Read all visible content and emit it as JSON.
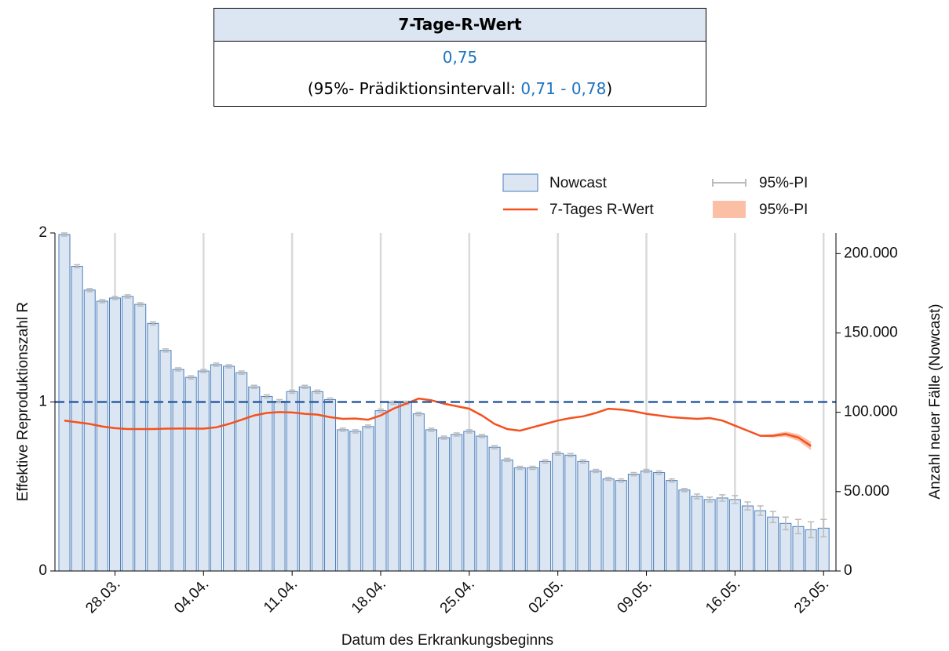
{
  "summary": {
    "title": "7-Tage-R-Wert",
    "value": "0,75",
    "interval_prefix": "(95%- Prädiktionsintervall:",
    "interval_low": "0,71",
    "interval_sep": "-",
    "interval_high": "0,78",
    "interval_suffix": ")"
  },
  "chart_data": {
    "type": "bar",
    "ylabel": "Effektive Reproduktionszahl R",
    "y2label": "Anzahl neuer Fälle (Nowcast)",
    "xlabel": "Datum des Erkrankungsbeginns",
    "categories": [
      null,
      null,
      null,
      null,
      "28.03.",
      null,
      null,
      null,
      null,
      null,
      null,
      "04.04.",
      null,
      null,
      null,
      null,
      null,
      null,
      "11.04.",
      null,
      null,
      null,
      null,
      null,
      null,
      "18.04.",
      null,
      null,
      null,
      null,
      null,
      null,
      "25.04.",
      null,
      null,
      null,
      null,
      null,
      null,
      "02.05.",
      null,
      null,
      null,
      null,
      null,
      null,
      "09.05.",
      null,
      null,
      null,
      null,
      null,
      null,
      "16.05.",
      null,
      null,
      null,
      null,
      null,
      null,
      "23.05."
    ],
    "ylim": [
      0,
      2
    ],
    "yticks": [
      0,
      1,
      2
    ],
    "y2lim": [
      0,
      213000
    ],
    "y2ticks": [
      0,
      {
        "value": 50000,
        "label": "50.000"
      },
      {
        "value": 100000,
        "label": "100.000"
      },
      {
        "value": 150000,
        "label": "150.000"
      },
      {
        "value": 200000,
        "label": "200.000"
      }
    ],
    "grid": true,
    "reference_line": 1,
    "reference_color": "#2e5fa3",
    "series": [
      {
        "name": "Nowcast",
        "type": "bar",
        "axis": "y2",
        "color": "#dce6f2",
        "edge_color": "#4a7ebb",
        "error_name": "95%-PI",
        "error_color": "#bbbbbb",
        "values": [
          212000,
          192000,
          177000,
          170000,
          172000,
          173000,
          168000,
          156000,
          139000,
          127000,
          122000,
          126000,
          130000,
          129000,
          125000,
          116000,
          110000,
          107000,
          113000,
          116000,
          113000,
          108000,
          89000,
          88000,
          91000,
          101000,
          106000,
          106000,
          99000,
          89000,
          84000,
          86000,
          88000,
          85000,
          78000,
          70000,
          65000,
          65000,
          69000,
          74000,
          73000,
          69000,
          63000,
          58000,
          57000,
          61000,
          63000,
          62000,
          57000,
          51000,
          47000,
          45000,
          46000,
          45000,
          41000,
          38000,
          34000,
          30000,
          28000,
          26000,
          27000
        ],
        "errors": [
          1000,
          1000,
          1000,
          1000,
          1000,
          1000,
          1000,
          1000,
          1000,
          1000,
          1000,
          1000,
          1000,
          1000,
          1000,
          1000,
          1000,
          1000,
          1000,
          1000,
          1000,
          1000,
          1000,
          1000,
          1000,
          1000,
          1000,
          1000,
          1000,
          1000,
          1000,
          1000,
          1000,
          1000,
          1000,
          1000,
          1000,
          1000,
          1000,
          1000,
          1000,
          1000,
          1000,
          1000,
          1000,
          1000,
          1000,
          1000,
          1000,
          1000,
          1500,
          1500,
          2000,
          2500,
          2500,
          3000,
          3500,
          4000,
          4500,
          5000,
          5500
        ]
      },
      {
        "name": "7-Tages R-Wert",
        "type": "line",
        "axis": "y",
        "color": "#f4511e",
        "band_name": "95%-PI",
        "band_color": "#fbbfa6",
        "values": [
          0.89,
          0.88,
          0.87,
          0.855,
          0.845,
          0.84,
          0.84,
          0.84,
          0.842,
          0.843,
          0.843,
          0.842,
          0.85,
          0.87,
          0.895,
          0.92,
          0.935,
          0.94,
          0.938,
          0.93,
          0.925,
          0.91,
          0.9,
          0.902,
          0.895,
          0.92,
          0.96,
          0.99,
          1.02,
          1.01,
          0.99,
          0.975,
          0.96,
          0.92,
          0.87,
          0.84,
          0.83,
          0.85,
          0.87,
          0.89,
          0.905,
          0.915,
          0.935,
          0.96,
          0.955,
          0.945,
          0.93,
          0.92,
          0.91,
          0.905,
          0.9,
          0.905,
          0.89,
          0.86,
          0.83,
          0.8,
          0.8,
          0.81,
          0.79,
          0.74,
          null
        ],
        "pi_low": [
          null,
          null,
          null,
          null,
          null,
          null,
          null,
          null,
          null,
          null,
          null,
          null,
          null,
          null,
          null,
          null,
          null,
          null,
          null,
          null,
          null,
          null,
          null,
          null,
          null,
          null,
          null,
          null,
          null,
          null,
          null,
          null,
          null,
          null,
          null,
          null,
          null,
          null,
          null,
          null,
          null,
          null,
          null,
          null,
          null,
          null,
          null,
          null,
          null,
          null,
          null,
          null,
          null,
          null,
          null,
          0.795,
          0.79,
          0.795,
          0.77,
          0.715,
          null
        ],
        "pi_high": [
          null,
          null,
          null,
          null,
          null,
          null,
          null,
          null,
          null,
          null,
          null,
          null,
          null,
          null,
          null,
          null,
          null,
          null,
          null,
          null,
          null,
          null,
          null,
          null,
          null,
          null,
          null,
          null,
          null,
          null,
          null,
          null,
          null,
          null,
          null,
          null,
          null,
          null,
          null,
          null,
          null,
          null,
          null,
          null,
          null,
          null,
          null,
          null,
          null,
          null,
          null,
          null,
          null,
          null,
          null,
          0.805,
          0.81,
          0.825,
          0.81,
          0.765,
          null
        ]
      }
    ]
  }
}
